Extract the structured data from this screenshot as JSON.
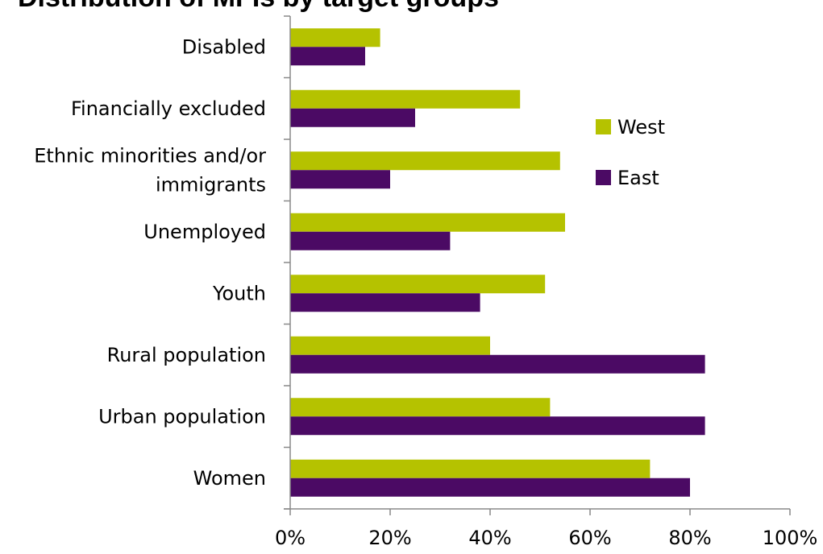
{
  "chart_data": {
    "type": "bar",
    "orientation": "horizontal",
    "title": "Distribution of MFIs by target groups",
    "categories": [
      "Disabled",
      "Financially excluded",
      "Ethnic minorities and/or immigrants",
      "Unemployed",
      "Youth",
      "Rural population",
      "Urban population",
      "Women"
    ],
    "category_lines": [
      [
        "Disabled"
      ],
      [
        "Financially excluded"
      ],
      [
        "Ethnic minorities and/or",
        "immigrants"
      ],
      [
        "Unemployed"
      ],
      [
        "Youth"
      ],
      [
        "Rural population"
      ],
      [
        "Urban population"
      ],
      [
        "Women"
      ]
    ],
    "series": [
      {
        "name": "West",
        "color": "#b5c200",
        "values": [
          0.18,
          0.46,
          0.54,
          0.55,
          0.51,
          0.4,
          0.52,
          0.72
        ]
      },
      {
        "name": "East",
        "color": "#4b0a64",
        "values": [
          0.15,
          0.25,
          0.2,
          0.32,
          0.38,
          0.83,
          0.83,
          0.8
        ]
      }
    ],
    "xlim": [
      0,
      1
    ],
    "xticks": [
      0,
      0.2,
      0.4,
      0.6,
      0.8,
      1.0
    ],
    "xtick_labels": [
      "0%",
      "20%",
      "40%",
      "60%",
      "80%",
      "100%"
    ],
    "grid": false,
    "legend_position": "right"
  }
}
